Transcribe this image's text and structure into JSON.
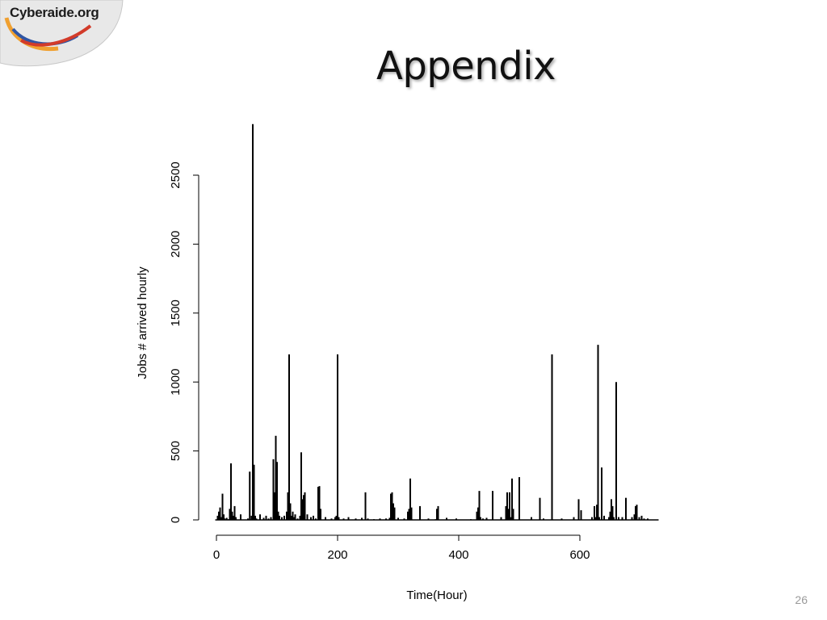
{
  "slide": {
    "title": "Appendix",
    "page_number": "26",
    "logo_text": "Cyberaide.org"
  },
  "colors": {
    "bars": "#000000",
    "axis": "#000000",
    "logo_blue": "#2f55a4",
    "logo_red": "#d23b2a",
    "logo_orange": "#f0a030"
  },
  "chart_data": {
    "type": "bar",
    "xlabel": "Time(Hour)",
    "ylabel": "Jobs # arrived hourly",
    "xlim": [
      0,
      730
    ],
    "ylim": [
      0,
      2870
    ],
    "xticks": [
      0,
      200,
      400,
      600
    ],
    "yticks": [
      0,
      500,
      1000,
      1500,
      2000,
      2500
    ],
    "grid": false,
    "x": [
      2,
      4,
      6,
      8,
      10,
      12,
      14,
      17,
      20,
      22,
      24,
      26,
      28,
      30,
      32,
      40,
      52,
      55,
      58,
      60,
      62,
      64,
      66,
      72,
      78,
      82,
      86,
      90,
      94,
      96,
      98,
      100,
      102,
      104,
      108,
      112,
      116,
      118,
      120,
      122,
      124,
      126,
      128,
      130,
      134,
      138,
      140,
      142,
      144,
      146,
      150,
      156,
      160,
      164,
      168,
      170,
      172,
      180,
      190,
      196,
      198,
      200,
      202,
      210,
      218,
      230,
      240,
      246,
      250,
      260,
      270,
      280,
      286,
      288,
      290,
      292,
      294,
      300,
      310,
      316,
      318,
      320,
      322,
      336,
      350,
      362,
      364,
      366,
      380,
      396,
      420,
      430,
      432,
      434,
      436,
      440,
      446,
      456,
      470,
      478,
      480,
      482,
      484,
      486,
      488,
      490,
      500,
      520,
      534,
      540,
      554,
      570,
      590,
      598,
      602,
      620,
      624,
      626,
      628,
      630,
      632,
      636,
      640,
      648,
      650,
      652,
      654,
      656,
      660,
      664,
      670,
      676,
      686,
      690,
      692,
      694,
      698,
      702,
      706,
      712
    ],
    "values": [
      30,
      60,
      90,
      20,
      190,
      40,
      10,
      15,
      5,
      80,
      410,
      60,
      30,
      100,
      20,
      40,
      10,
      350,
      30,
      2870,
      400,
      30,
      10,
      40,
      15,
      30,
      10,
      20,
      440,
      200,
      610,
      420,
      60,
      30,
      20,
      30,
      60,
      200,
      1200,
      120,
      30,
      60,
      20,
      40,
      10,
      30,
      490,
      150,
      180,
      200,
      40,
      20,
      30,
      10,
      240,
      245,
      80,
      20,
      10,
      20,
      30,
      1200,
      20,
      10,
      20,
      10,
      15,
      200,
      10,
      5,
      10,
      10,
      15,
      190,
      200,
      120,
      90,
      15,
      10,
      60,
      80,
      300,
      90,
      100,
      10,
      5,
      80,
      100,
      15,
      10,
      5,
      60,
      90,
      210,
      20,
      10,
      15,
      210,
      20,
      100,
      200,
      80,
      200,
      20,
      300,
      80,
      310,
      20,
      160,
      10,
      1200,
      10,
      20,
      150,
      70,
      20,
      100,
      20,
      110,
      1270,
      20,
      380,
      30,
      20,
      60,
      150,
      100,
      20,
      1000,
      20,
      20,
      160,
      20,
      40,
      100,
      110,
      20,
      30,
      10,
      10
    ]
  }
}
